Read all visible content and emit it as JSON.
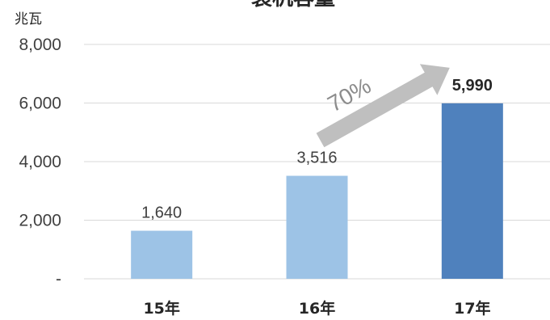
{
  "chart_data": {
    "type": "bar",
    "title": "装机容量",
    "ylabel": "兆瓦",
    "xlabel": "",
    "categories": [
      "15年",
      "16年",
      "17年"
    ],
    "values": [
      1640,
      3516,
      5990
    ],
    "value_labels": [
      "1,640",
      "3,516",
      "5,990"
    ],
    "ylim": [
      0,
      8000
    ],
    "yticks": [
      {
        "value": 0,
        "label": "-"
      },
      {
        "value": 2000,
        "label": "2,000"
      },
      {
        "value": 4000,
        "label": "4,000"
      },
      {
        "value": 6000,
        "label": "6,000"
      },
      {
        "value": 8000,
        "label": "8,000"
      }
    ],
    "grid": true,
    "bar_colors": [
      "#9dc3e6",
      "#9dc3e6",
      "#4f81bd"
    ],
    "highlight_index": 2,
    "annotation": {
      "text": "70%",
      "from": "16年",
      "to": "17年",
      "color": "#bfbfbf"
    }
  }
}
